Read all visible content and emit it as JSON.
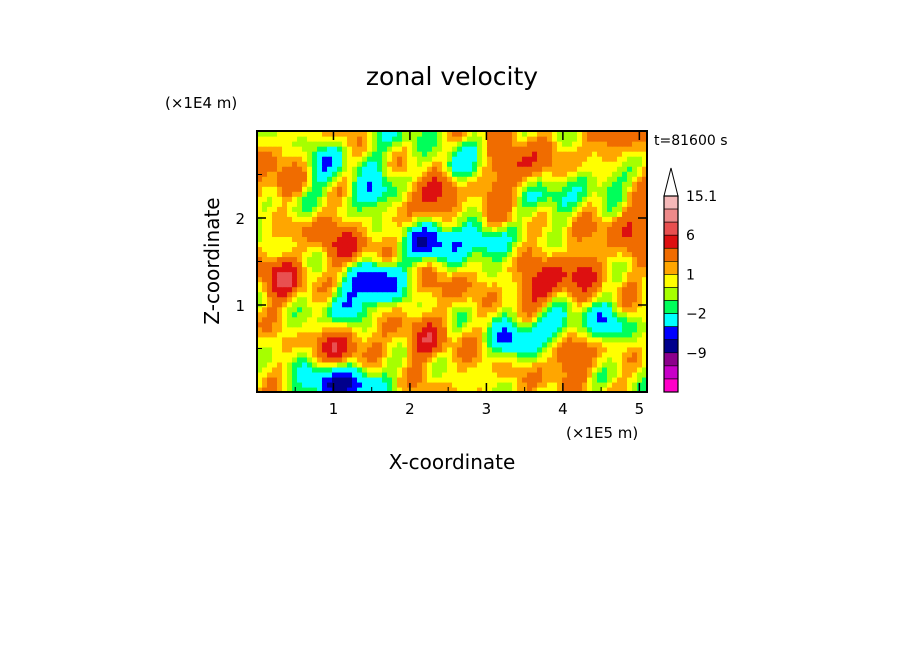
{
  "chart_data": {
    "type": "heatmap",
    "title": "zonal velocity",
    "xlabel": "X-coordinate",
    "ylabel": "Z-coordinate",
    "x_unit": "(×1E5 m)",
    "y_unit": "(×1E4 m)",
    "time_label": "t=81600 s",
    "xlim": [
      0,
      5.1
    ],
    "ylim": [
      0,
      3
    ],
    "x_ticks": [
      1,
      2,
      3,
      4,
      5
    ],
    "x_tick_labels": [
      "1",
      "2",
      "3",
      "4",
      "5"
    ],
    "y_ticks": [
      1,
      2
    ],
    "y_tick_labels": [
      "1",
      "2"
    ],
    "colorbar": {
      "labels": [
        {
          "value": 15.1,
          "text": "15.1"
        },
        {
          "value": 6,
          "text": "6"
        },
        {
          "value": 1,
          "text": "1"
        },
        {
          "value": -2,
          "text": "−2"
        },
        {
          "value": -9,
          "text": "−9"
        }
      ],
      "levels": [
        {
          "value": 15.1,
          "color": "#f4b8b8"
        },
        {
          "value": 12,
          "color": "#ee8a8a"
        },
        {
          "value": 9,
          "color": "#e85050"
        },
        {
          "value": 6,
          "color": "#dd1010"
        },
        {
          "value": 4,
          "color": "#f06c00"
        },
        {
          "value": 2,
          "color": "#ffa600"
        },
        {
          "value": 1,
          "color": "#ffff00"
        },
        {
          "value": 0,
          "color": "#a6ff00"
        },
        {
          "value": -1,
          "color": "#00ff5a"
        },
        {
          "value": -2,
          "color": "#00ffff"
        },
        {
          "value": -4,
          "color": "#0000ff"
        },
        {
          "value": -6,
          "color": "#00008c"
        },
        {
          "value": -9,
          "color": "#8c008c"
        },
        {
          "value": -12,
          "color": "#c800c8"
        },
        {
          "value": -15,
          "color": "#ff00c8"
        }
      ]
    },
    "features": [
      {
        "x": 1.6,
        "z": 1.3,
        "u": -7
      },
      {
        "x": 1.2,
        "z": 1.0,
        "u": -5
      },
      {
        "x": 2.3,
        "z": 1.75,
        "u": -7
      },
      {
        "x": 3.0,
        "z": 1.75,
        "u": -6
      },
      {
        "x": 1.55,
        "z": 2.3,
        "u": -5
      },
      {
        "x": 0.9,
        "z": 2.6,
        "u": -4
      },
      {
        "x": 0.5,
        "z": 2.1,
        "u": -3
      },
      {
        "x": 3.7,
        "z": 2.2,
        "u": -4
      },
      {
        "x": 4.5,
        "z": 2.4,
        "u": -3
      },
      {
        "x": 2.6,
        "z": 2.6,
        "u": -4
      },
      {
        "x": 1.8,
        "z": 2.9,
        "u": -3
      },
      {
        "x": 3.4,
        "z": 0.6,
        "u": -5
      },
      {
        "x": 3.9,
        "z": 0.8,
        "u": -4
      },
      {
        "x": 4.6,
        "z": 0.8,
        "u": -4
      },
      {
        "x": 0.9,
        "z": 0.1,
        "u": -6
      },
      {
        "x": 1.4,
        "z": 0.1,
        "u": -5
      },
      {
        "x": 0.3,
        "z": 1.3,
        "u": 4
      },
      {
        "x": 0.3,
        "z": 2.4,
        "u": 3
      },
      {
        "x": 1.2,
        "z": 1.7,
        "u": 3
      },
      {
        "x": 1.1,
        "z": 0.55,
        "u": 4
      },
      {
        "x": 2.3,
        "z": 2.3,
        "u": 5
      },
      {
        "x": 3.4,
        "z": 2.6,
        "u": 4
      },
      {
        "x": 3.2,
        "z": 2.0,
        "u": 3
      },
      {
        "x": 3.7,
        "z": 1.2,
        "u": 4
      },
      {
        "x": 4.2,
        "z": 1.4,
        "u": 3
      },
      {
        "x": 4.9,
        "z": 1.9,
        "u": 3
      },
      {
        "x": 2.2,
        "z": 0.6,
        "u": 3
      },
      {
        "x": 4.1,
        "z": 0.4,
        "u": 3
      },
      {
        "x": 2.6,
        "z": 1.25,
        "u": 1
      },
      {
        "x": 3.0,
        "z": 0.9,
        "u": -1
      },
      {
        "x": 0.5,
        "z": 0.7,
        "u": -1
      },
      {
        "x": 4.8,
        "z": 0.3,
        "u": -1
      },
      {
        "x": 4.6,
        "z": 2.9,
        "u": 2
      },
      {
        "x": 0.1,
        "z": 0.2,
        "u": -1
      },
      {
        "x": 0.7,
        "z": 2.0,
        "u": 2
      }
    ]
  }
}
